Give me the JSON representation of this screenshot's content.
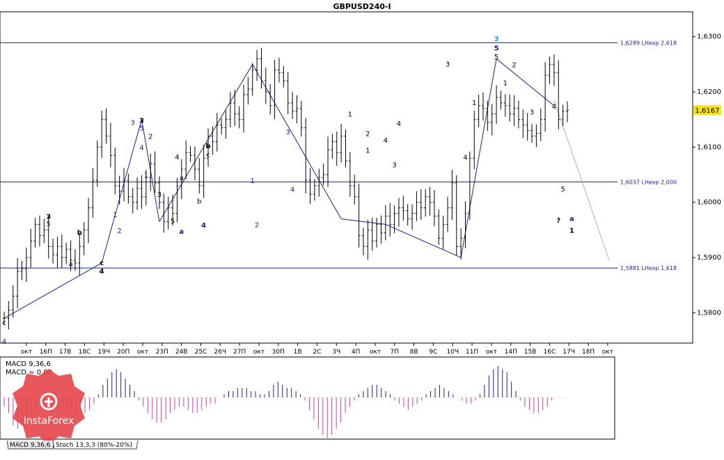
{
  "chart_data": [
    {
      "type": "candlestick",
      "title": "GBPUSD240-I",
      "yticks": [
        "1,6300",
        "1,6200",
        "1,6100",
        "1,6000",
        "1,5900",
        "1,5800"
      ],
      "yvals": [
        1.63,
        1.62,
        1.61,
        1.6,
        1.59,
        1.58
      ],
      "ylim": [
        1.5745,
        1.6345
      ],
      "current_price": "1,6167",
      "current_value": 1.6167,
      "xticks": [
        "окт",
        "16П",
        "17В",
        "18С",
        "19Ч",
        "20П",
        "окт",
        "23П",
        "24В",
        "25С",
        "26Ч",
        "27П",
        "окт",
        "30П",
        "1В",
        "2С",
        "3Ч",
        "4П",
        "окт",
        "7П",
        "8В",
        "9С",
        "10Ч",
        "11П",
        "окт",
        "14П",
        "15В",
        "16С",
        "17Ч",
        "18П",
        "окт",
        "21П",
        "22В",
        "23С",
        "24Ч",
        "25П",
        "ок"
      ],
      "hlines": [
        {
          "label": "1,6289 LHexp 2,618",
          "value": 1.6289
        },
        {
          "label": "1,6037 LHexp 2,000",
          "value": 1.6037
        },
        {
          "label": "1,5881 LHexp 1,618",
          "value": 1.5881
        }
      ],
      "closes": [
        1.579,
        1.5805,
        1.583,
        1.5875,
        1.588,
        1.59,
        1.593,
        1.596,
        1.594,
        1.595,
        1.592,
        1.5905,
        1.592,
        1.59,
        1.5915,
        1.5895,
        1.589,
        1.592,
        1.595,
        1.599,
        1.604,
        1.61,
        1.615,
        1.612,
        1.6085,
        1.603,
        1.602,
        1.604,
        1.601,
        1.6,
        1.6025,
        1.601,
        1.6045,
        1.607,
        1.6035,
        1.6,
        1.5965,
        1.599,
        1.598,
        1.603,
        1.606,
        1.609,
        1.6085,
        1.606,
        1.603,
        1.608,
        1.612,
        1.611,
        1.614,
        1.6135,
        1.615,
        1.618,
        1.616,
        1.615,
        1.6195,
        1.6205,
        1.624,
        1.626,
        1.622,
        1.62,
        1.6175,
        1.624,
        1.6235,
        1.622,
        1.618,
        1.6165,
        1.617,
        1.6135,
        1.604,
        1.6015,
        1.603,
        1.6045,
        1.605,
        1.6095,
        1.611,
        1.609,
        1.612,
        1.6075,
        1.603,
        1.601,
        1.594,
        1.592,
        1.595,
        1.593,
        1.596,
        1.5945,
        1.5975,
        1.596,
        1.598,
        1.599,
        1.5985,
        1.597,
        1.598,
        1.6,
        1.599,
        1.601,
        1.6,
        1.5975,
        1.5935,
        1.596,
        1.599,
        1.6035,
        1.592,
        1.5935,
        1.598,
        1.608,
        1.615,
        1.6175,
        1.617,
        1.6145,
        1.616,
        1.619,
        1.618,
        1.6175,
        1.616,
        1.617,
        1.615,
        1.614,
        1.613,
        1.612,
        1.6125,
        1.615,
        1.623,
        1.625,
        1.6235,
        1.615,
        1.6165,
        1.6167
      ],
      "wave_labels": [
        {
          "t": "c",
          "i": 0,
          "v": 1.5778
        },
        {
          "t": "4",
          "i": 0,
          "v": 1.5744,
          "c": "blue"
        },
        {
          "t": "3",
          "i": 10,
          "v": 1.597,
          "c": "black",
          "b": true
        },
        {
          "t": "5",
          "i": 10,
          "v": 1.5957,
          "c": "blue"
        },
        {
          "t": "b",
          "i": 17,
          "v": 1.5941,
          "b": true
        },
        {
          "t": "a",
          "i": 15,
          "v": 1.5884
        },
        {
          "t": "c",
          "i": 22,
          "v": 1.5886,
          "b": true
        },
        {
          "t": "4",
          "i": 22,
          "v": 1.5871,
          "b": true
        },
        {
          "t": "1",
          "i": 25,
          "v": 1.5973,
          "c": "blue"
        },
        {
          "t": "2",
          "i": 26,
          "v": 1.5944,
          "c": "blue"
        },
        {
          "t": "3",
          "i": 29,
          "v": 1.614,
          "c": "blue"
        },
        {
          "t": "3",
          "i": 31,
          "v": 1.6144,
          "c": "black",
          "b": true
        },
        {
          "t": "5",
          "i": 31,
          "v": 1.613,
          "c": "blue"
        },
        {
          "t": "4",
          "i": 31,
          "v": 1.6095,
          "c": "blue"
        },
        {
          "t": "2",
          "i": 33,
          "v": 1.6115
        },
        {
          "t": "1",
          "i": 32,
          "v": 1.6045
        },
        {
          "t": "3",
          "i": 35,
          "v": 1.601
        },
        {
          "t": "4",
          "i": 39,
          "v": 1.6078
        },
        {
          "t": "a",
          "i": 40,
          "v": 1.604
        },
        {
          "t": "5",
          "i": 38,
          "v": 1.5962
        },
        {
          "t": "a",
          "i": 40,
          "v": 1.5943,
          "c": "blue",
          "b": true
        },
        {
          "t": "b",
          "i": 46,
          "v": 1.6098,
          "b": true
        },
        {
          "t": "c",
          "i": 46,
          "v": 1.6082
        },
        {
          "t": "b",
          "i": 44,
          "v": 1.5998
        },
        {
          "t": "4",
          "i": 45,
          "v": 1.5954,
          "c": "blue",
          "b": true
        },
        {
          "t": "1",
          "i": 56,
          "v": 1.6035,
          "c": "blue"
        },
        {
          "t": "2",
          "i": 57,
          "v": 1.5955,
          "c": "blue"
        },
        {
          "t": "3",
          "i": 64,
          "v": 1.6123,
          "c": "blue"
        },
        {
          "t": "4",
          "i": 65,
          "v": 1.6019,
          "c": "blue"
        },
        {
          "t": "1",
          "i": 78,
          "v": 1.6155
        },
        {
          "t": "2",
          "i": 82,
          "v": 1.612
        },
        {
          "t": "1",
          "i": 82,
          "v": 1.609
        },
        {
          "t": "4",
          "i": 86,
          "v": 1.6108
        },
        {
          "t": "3",
          "i": 88,
          "v": 1.6063
        },
        {
          "t": "4",
          "i": 89,
          "v": 1.6138
        },
        {
          "t": "1",
          "i": 106,
          "v": 1.6176
        },
        {
          "t": "4",
          "i": 104,
          "v": 1.6077
        },
        {
          "t": "3",
          "i": 100,
          "v": 1.6246
        },
        {
          "t": "3",
          "i": 111,
          "v": 1.6292,
          "c": "teal",
          "b": true
        },
        {
          "t": "5",
          "i": 111,
          "v": 1.6275,
          "c": "blue",
          "b": true
        },
        {
          "t": "5",
          "i": 111,
          "v": 1.6259
        },
        {
          "t": "2",
          "i": 115,
          "v": 1.6245
        },
        {
          "t": "1",
          "i": 113,
          "v": 1.6212
        },
        {
          "t": "3",
          "i": 119,
          "v": 1.6159
        },
        {
          "t": "4",
          "i": 124,
          "v": 1.6169
        },
        {
          "t": "?",
          "i": 125,
          "v": 1.5963,
          "b": true
        },
        {
          "t": "a",
          "i": 128,
          "v": 1.5966,
          "c": "blue",
          "b": true
        },
        {
          "t": "5",
          "i": 126,
          "v": 1.602
        },
        {
          "t": "1",
          "i": 128,
          "v": 1.5945,
          "b": true
        }
      ]
    },
    {
      "type": "bar",
      "title": "MACD 9,36,6",
      "subtitle": "MACD = 0,00",
      "values": [
        -0.3,
        -0.5,
        -0.9,
        -1.0,
        -0.9,
        -0.7,
        -0.5,
        -0.4,
        -0.3,
        -0.3,
        -0.2,
        -0.2,
        -0.3,
        -0.3,
        -0.4,
        -0.5,
        -0.5,
        -0.5,
        -0.5,
        -0.4,
        -0.2,
        0.1,
        0.4,
        0.6,
        0.8,
        0.9,
        0.8,
        0.6,
        0.4,
        0.2,
        -0.1,
        -0.3,
        -0.5,
        -0.7,
        -0.8,
        -0.8,
        -0.7,
        -0.5,
        -0.4,
        -0.3,
        -0.3,
        -0.4,
        -0.5,
        -0.5,
        -0.4,
        -0.3,
        -0.2,
        -0.2,
        0.0,
        0.1,
        0.2,
        0.2,
        0.3,
        0.3,
        0.3,
        0.2,
        0.2,
        0.1,
        0.1,
        0.2,
        0.4,
        0.5,
        0.4,
        0.3,
        0.3,
        0.2,
        0.1,
        -0.1,
        -0.4,
        -0.7,
        -1.0,
        -1.2,
        -1.3,
        -1.2,
        -1.0,
        -0.8,
        -0.5,
        -0.3,
        -0.1,
        0.1,
        0.2,
        0.3,
        0.4,
        0.4,
        0.3,
        0.2,
        0.1,
        -0.1,
        -0.2,
        -0.3,
        -0.4,
        -0.3,
        -0.2,
        -0.1,
        0.1,
        0.2,
        0.3,
        0.4,
        0.3,
        0.2,
        0.1,
        0.0,
        -0.1,
        -0.2,
        -0.2,
        -0.1,
        0.1,
        0.4,
        0.7,
        0.9,
        1.0,
        0.9,
        0.8,
        0.5,
        0.2,
        -0.1,
        -0.3,
        -0.4,
        -0.5,
        -0.5,
        -0.4,
        -0.3,
        -0.1,
        0.0,
        0.0,
        0.0
      ],
      "watermark": "InstaForex"
    }
  ],
  "tabs": [
    "MACD 9,36,6",
    "Stoch 13,3,3 (80%-20%)"
  ]
}
